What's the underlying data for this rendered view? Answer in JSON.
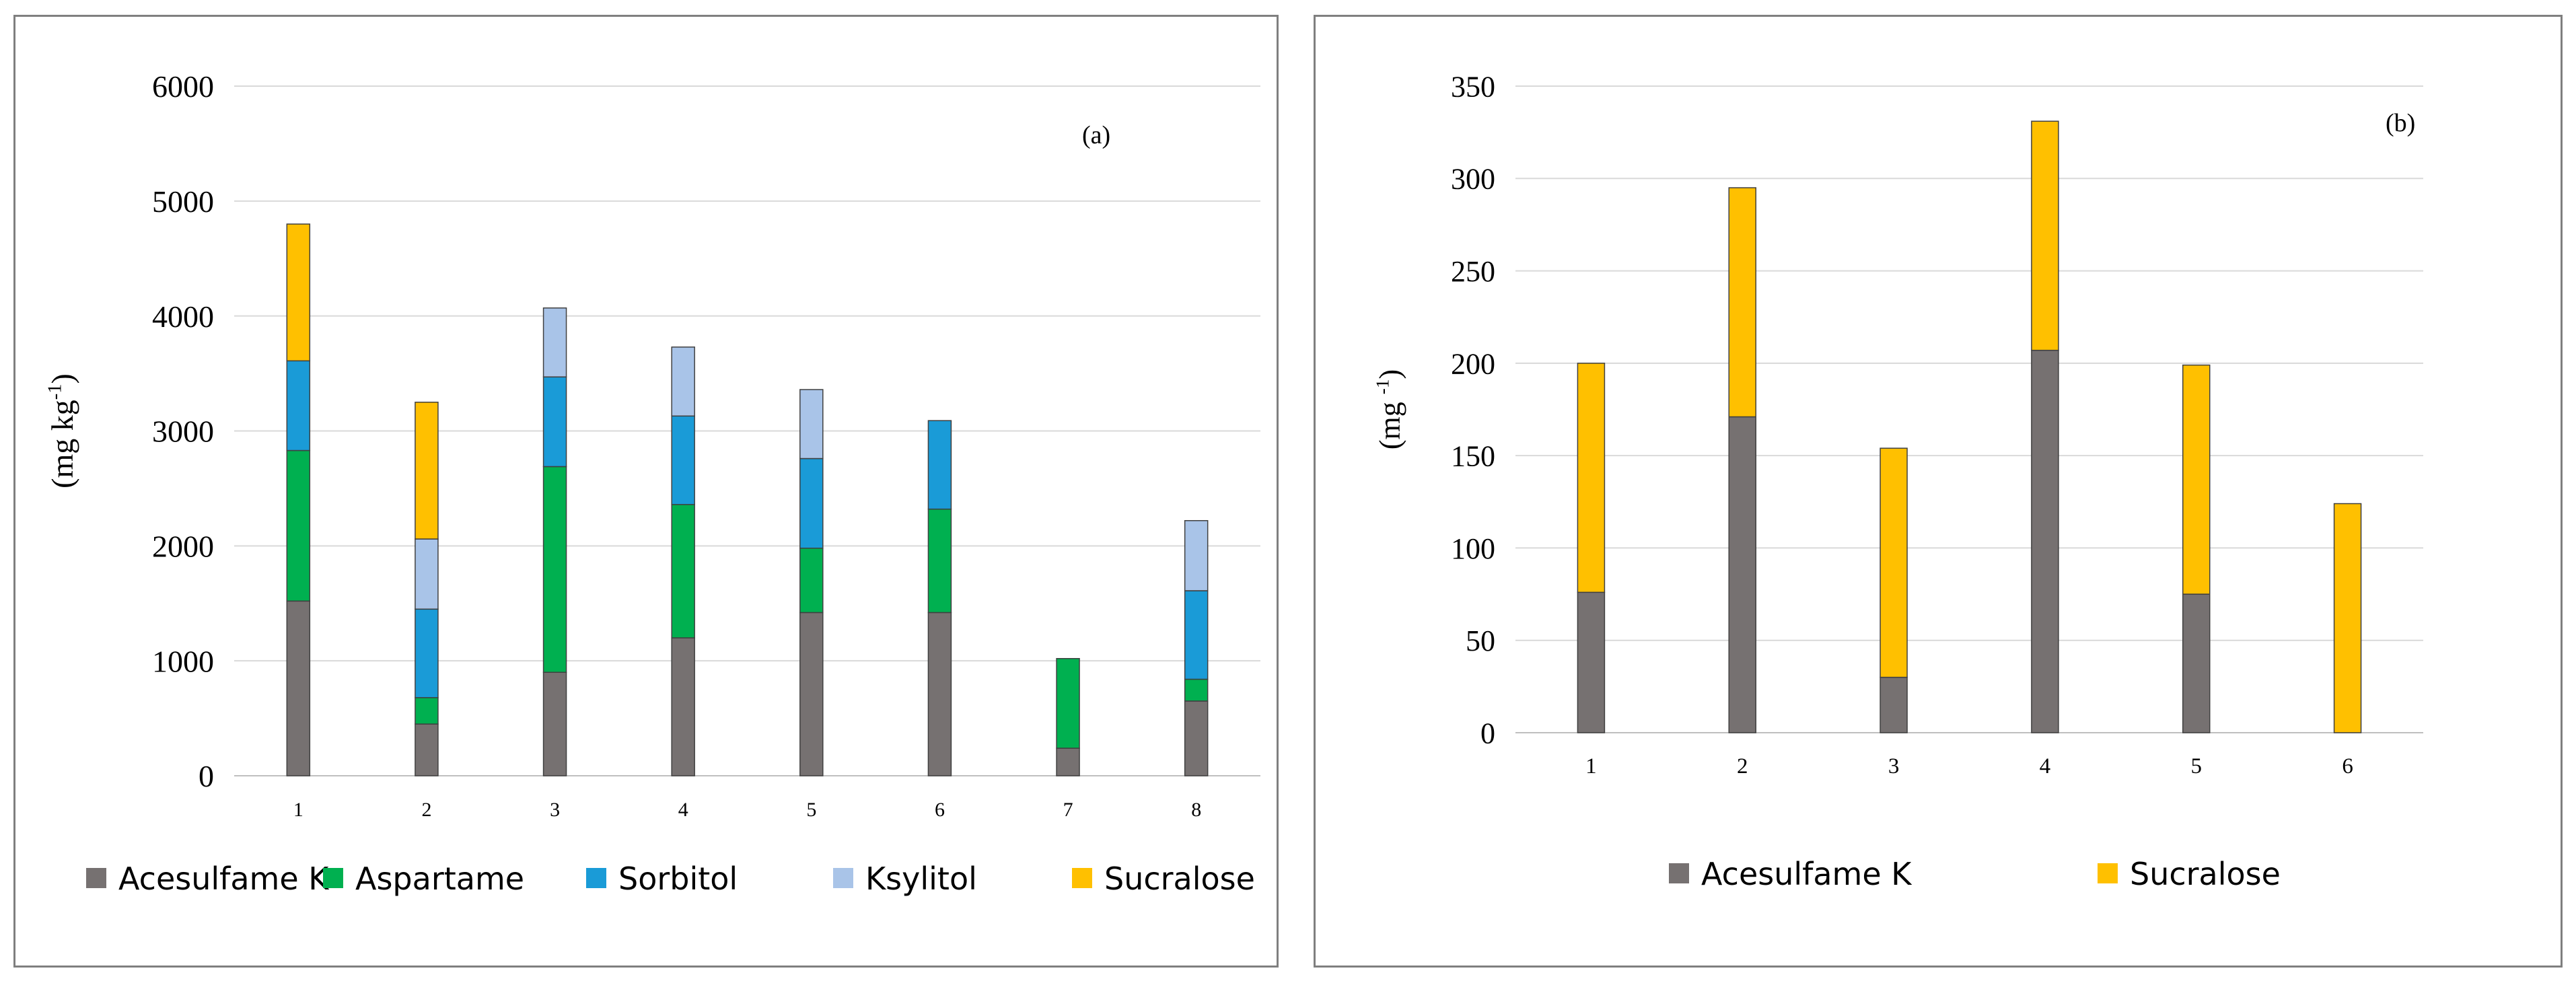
{
  "chart_data": [
    {
      "type": "bar",
      "stacked": true,
      "panel_label": "(a)",
      "ylabel": "(mg kg-1)",
      "ylabel_main": "(mg kg",
      "ylabel_sup": "-1",
      "ylabel_end": ")",
      "ylim": [
        0,
        6000
      ],
      "yticks": [
        0,
        1000,
        2000,
        3000,
        4000,
        5000,
        6000
      ],
      "categories": [
        "1",
        "2",
        "3",
        "4",
        "5",
        "6",
        "7",
        "8"
      ],
      "grid": true,
      "legend_position": "bottom",
      "series": [
        {
          "name": "Acesulfame K",
          "color": "#767171",
          "values": [
            1520,
            450,
            900,
            1200,
            1420,
            1420,
            240,
            650
          ]
        },
        {
          "name": "Aspartame",
          "color": "#00b050",
          "values": [
            1310,
            230,
            1790,
            1160,
            560,
            900,
            780,
            190
          ]
        },
        {
          "name": "Sorbitol",
          "color": "#1a9bd7",
          "values": [
            780,
            770,
            780,
            770,
            780,
            770,
            0,
            770
          ]
        },
        {
          "name": "Ksylitol",
          "color": "#a9c4e8",
          "values": [
            0,
            610,
            600,
            600,
            600,
            0,
            0,
            610
          ]
        },
        {
          "name": "Sucralose",
          "color": "#ffc000",
          "values": [
            1190,
            1190,
            0,
            0,
            0,
            0,
            0,
            0
          ]
        }
      ]
    },
    {
      "type": "bar",
      "stacked": true,
      "panel_label": "(b)",
      "ylabel": "(mg -1)",
      "ylabel_main": "(mg ",
      "ylabel_sup": "-1",
      "ylabel_end": ")",
      "ylim": [
        0,
        350
      ],
      "yticks": [
        0,
        50,
        100,
        150,
        200,
        250,
        300,
        350
      ],
      "categories": [
        "1",
        "2",
        "3",
        "4",
        "5",
        "6"
      ],
      "grid": true,
      "legend_position": "bottom",
      "series": [
        {
          "name": "Acesulfame K",
          "color": "#767171",
          "values": [
            76,
            171,
            30,
            207,
            75,
            0
          ]
        },
        {
          "name": "Sucralose",
          "color": "#ffc000",
          "values": [
            124,
            124,
            124,
            124,
            124,
            124
          ]
        }
      ]
    }
  ]
}
